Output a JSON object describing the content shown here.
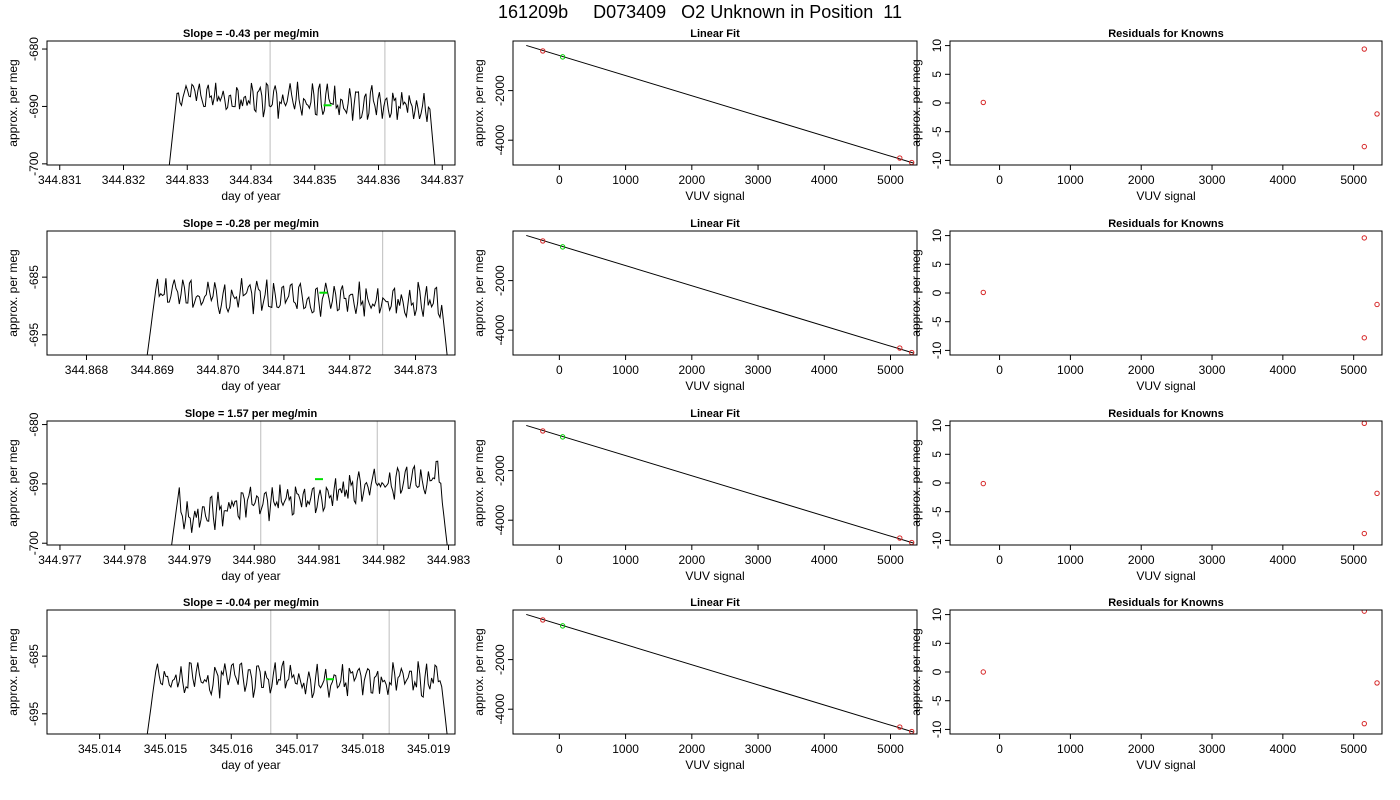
{
  "title": "161209b     D073409   O2 Unknown in Position  11",
  "chart_data": [
    {
      "type": "line",
      "panel": "timeseries",
      "row": 1,
      "title": "Slope =  -0.43  per meg/min",
      "xlabel": "day of year",
      "ylabel": "approx. per meg",
      "xlim": [
        344.8308,
        344.8372
      ],
      "ylim": [
        -700.2,
        -678.6
      ],
      "y_reversed": true,
      "xticks": [
        "344.831",
        "344.832",
        "344.833",
        "344.834",
        "344.835",
        "344.836",
        "344.837"
      ],
      "yticks": [
        "-680",
        "-690",
        "-700"
      ],
      "start": 344.8327,
      "end": 344.8369,
      "base": -689,
      "drift": 2,
      "vlines": [
        344.8343,
        344.8361
      ],
      "marker": {
        "x": 344.8352,
        "y": -689.8
      }
    },
    {
      "type": "line",
      "panel": "fit",
      "row": 1,
      "title": "Linear Fit",
      "xlabel": "VUV signal",
      "ylabel": "approx. per meg",
      "xlim": [
        -700,
        5400
      ],
      "ylim": [
        -5000,
        0
      ],
      "xticks": [
        "0",
        "1000",
        "2000",
        "3000",
        "4000",
        "5000"
      ],
      "yticks": [
        "-2000",
        "-4000"
      ],
      "line": [
        [
          -500,
          -179
        ],
        [
          5350,
          -4926
        ]
      ],
      "knowns": [
        [
          -250,
          -400
        ],
        [
          5140,
          -4720
        ],
        [
          5320,
          -4900
        ]
      ],
      "unknown": [
        [
          50,
          -640
        ]
      ]
    },
    {
      "type": "scatter",
      "panel": "residuals",
      "row": 1,
      "title": "Residuals for Knowns",
      "xlabel": "VUV signal",
      "ylabel": "approx. per meg",
      "xlim": [
        -700,
        5400
      ],
      "ylim": [
        -10.8,
        10.8
      ],
      "xticks": [
        "0",
        "1000",
        "2000",
        "3000",
        "4000",
        "5000"
      ],
      "yticks": [
        "10",
        "5",
        "0",
        "-5",
        "-10"
      ],
      "points": [
        [
          -230,
          0.1
        ],
        [
          5150,
          9.4
        ],
        [
          5150,
          -7.6
        ],
        [
          5330,
          -1.9
        ]
      ]
    },
    {
      "type": "line",
      "panel": "timeseries",
      "row": 2,
      "title": "Slope =  -0.28  per meg/min",
      "xlabel": "day of year",
      "ylabel": "approx. per meg",
      "xlim": [
        344.8674,
        344.8736
      ],
      "ylim": [
        -698.5,
        -677.0
      ],
      "y_reversed": true,
      "xticks": [
        "344.868",
        "344.869",
        "344.870",
        "344.871",
        "344.872",
        "344.873"
      ],
      "yticks": [
        "-685",
        "-695"
      ],
      "start": 344.8689,
      "end": 344.8735,
      "base": -688.5,
      "drift": 1.8,
      "vlines": [
        344.8708,
        344.8725
      ],
      "marker": {
        "x": 344.8716,
        "y": -687.7
      }
    },
    {
      "type": "line",
      "panel": "fit",
      "row": 2,
      "title": "Linear Fit",
      "xlabel": "VUV signal",
      "ylabel": "approx. per meg",
      "xlim": [
        -700,
        5400
      ],
      "ylim": [
        -5000,
        0
      ],
      "xticks": [
        "0",
        "1000",
        "2000",
        "3000",
        "4000",
        "5000"
      ],
      "yticks": [
        "-2000",
        "-4000"
      ],
      "line": [
        [
          -500,
          -179
        ],
        [
          5350,
          -4926
        ]
      ],
      "knowns": [
        [
          -250,
          -400
        ],
        [
          5140,
          -4720
        ],
        [
          5320,
          -4900
        ]
      ],
      "unknown": [
        [
          50,
          -640
        ]
      ]
    },
    {
      "type": "scatter",
      "panel": "residuals",
      "row": 2,
      "title": "Residuals for Knowns",
      "xlabel": "VUV signal",
      "ylabel": "approx. per meg",
      "xlim": [
        -700,
        5400
      ],
      "ylim": [
        -10.8,
        10.8
      ],
      "xticks": [
        "0",
        "1000",
        "2000",
        "3000",
        "4000",
        "5000"
      ],
      "yticks": [
        "10",
        "5",
        "0",
        "-5",
        "-10"
      ],
      "points": [
        [
          -230,
          0.1
        ],
        [
          5150,
          9.6
        ],
        [
          5150,
          -7.8
        ],
        [
          5330,
          -2.0
        ]
      ]
    },
    {
      "type": "line",
      "panel": "timeseries",
      "row": 3,
      "title": "Slope =  1.57  per meg/min",
      "xlabel": "day of year",
      "ylabel": "approx. per meg",
      "xlim": [
        344.9768,
        344.9831
      ],
      "ylim": [
        -700.3,
        -679.4
      ],
      "y_reversed": true,
      "xticks": [
        "344.977",
        "344.978",
        "344.979",
        "344.980",
        "344.981",
        "344.982",
        "344.983"
      ],
      "yticks": [
        "-680",
        "-690",
        "-700"
      ],
      "start": 344.9787,
      "end": 344.983,
      "base": -692,
      "drift": -7.5,
      "vlines": [
        344.9801,
        344.9819
      ],
      "marker": {
        "x": 344.981,
        "y": -689.2
      }
    },
    {
      "type": "line",
      "panel": "fit",
      "row": 3,
      "title": "Linear Fit",
      "xlabel": "VUV signal",
      "ylabel": "approx. per meg",
      "xlim": [
        -700,
        5400
      ],
      "ylim": [
        -5000,
        0
      ],
      "xticks": [
        "0",
        "1000",
        "2000",
        "3000",
        "4000",
        "5000"
      ],
      "yticks": [
        "-2000",
        "-4000"
      ],
      "line": [
        [
          -500,
          -179
        ],
        [
          5350,
          -4926
        ]
      ],
      "knowns": [
        [
          -250,
          -400
        ],
        [
          5140,
          -4720
        ],
        [
          5320,
          -4900
        ]
      ],
      "unknown": [
        [
          50,
          -640
        ]
      ]
    },
    {
      "type": "scatter",
      "panel": "residuals",
      "row": 3,
      "title": "Residuals for Knowns",
      "xlabel": "VUV signal",
      "ylabel": "approx. per meg",
      "xlim": [
        -700,
        5400
      ],
      "ylim": [
        -10.8,
        10.8
      ],
      "xticks": [
        "0",
        "1000",
        "2000",
        "3000",
        "4000",
        "5000"
      ],
      "yticks": [
        "10",
        "5",
        "0",
        "-5",
        "-10"
      ],
      "points": [
        [
          -230,
          -0.1
        ],
        [
          5150,
          10.4
        ],
        [
          5150,
          -8.8
        ],
        [
          5330,
          -1.8
        ]
      ]
    },
    {
      "type": "line",
      "panel": "timeseries",
      "row": 4,
      "title": "Slope =  -0.04  per meg/min",
      "xlabel": "day of year",
      "ylabel": "approx. per meg",
      "xlim": [
        345.0132,
        345.0194
      ],
      "ylim": [
        -698.5,
        -677.0
      ],
      "y_reversed": true,
      "xticks": [
        "345.014",
        "345.015",
        "345.016",
        "345.017",
        "345.018",
        "345.019"
      ],
      "yticks": [
        "-685",
        "-695"
      ],
      "start": 345.0147,
      "end": 345.0193,
      "base": -689,
      "drift": 0,
      "vlines": [
        345.0166,
        345.0184
      ],
      "marker": {
        "x": 345.0175,
        "y": -689.0
      }
    },
    {
      "type": "line",
      "panel": "fit",
      "row": 4,
      "title": "Linear Fit",
      "xlabel": "VUV signal",
      "ylabel": "approx. per meg",
      "xlim": [
        -700,
        5400
      ],
      "ylim": [
        -5000,
        0
      ],
      "xticks": [
        "0",
        "1000",
        "2000",
        "3000",
        "4000",
        "5000"
      ],
      "yticks": [
        "-2000",
        "-4000"
      ],
      "line": [
        [
          -500,
          -179
        ],
        [
          5350,
          -4926
        ]
      ],
      "knowns": [
        [
          -250,
          -400
        ],
        [
          5140,
          -4720
        ],
        [
          5320,
          -4900
        ]
      ],
      "unknown": [
        [
          50,
          -640
        ]
      ]
    },
    {
      "type": "scatter",
      "panel": "residuals",
      "row": 4,
      "title": "Residuals for Knowns",
      "xlabel": "VUV signal",
      "ylabel": "approx. per meg",
      "xlim": [
        -700,
        5400
      ],
      "ylim": [
        -10.8,
        10.8
      ],
      "xticks": [
        "0",
        "1000",
        "2000",
        "3000",
        "4000",
        "5000"
      ],
      "yticks": [
        "10",
        "5",
        "0",
        "-5",
        "-10"
      ],
      "points": [
        [
          -230,
          0.0
        ],
        [
          5150,
          10.6
        ],
        [
          5150,
          -9.0
        ],
        [
          5330,
          -1.9
        ]
      ]
    }
  ]
}
